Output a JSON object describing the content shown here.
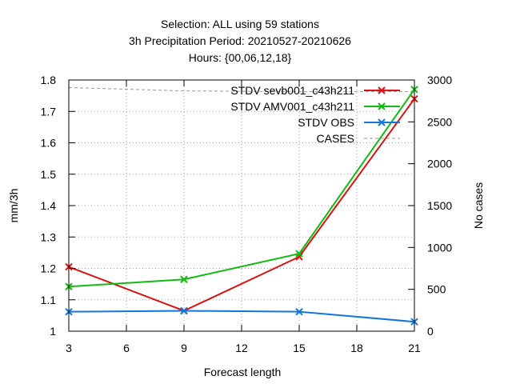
{
  "chart_data": {
    "type": "line",
    "title_lines": [
      "Selection: ALL using    59 stations",
      "3h Precipitation   Period: 20210527-20210626",
      "Hours: {00,06,12,18}"
    ],
    "xlabel": "Forecast length",
    "ylabel": "mm/3h",
    "y2label": "No cases",
    "x": [
      3,
      9,
      15,
      21
    ],
    "xlim": [
      3,
      21
    ],
    "xticks": [
      3,
      6,
      9,
      12,
      15,
      18,
      21
    ],
    "ylim": [
      1.0,
      1.8
    ],
    "yticks": [
      1,
      1.1,
      1.2,
      1.3,
      1.4,
      1.5,
      1.6,
      1.7,
      1.8
    ],
    "y2lim": [
      0,
      3000
    ],
    "y2ticks": [
      0,
      500,
      1000,
      1500,
      2000,
      2500,
      3000
    ],
    "grid": true,
    "legend_position": "top-right",
    "series": [
      {
        "name": "STDV sevb001_c43h211",
        "axis": "y",
        "color": "#dd1111",
        "marker": "x",
        "dash": false,
        "x": [
          3,
          9,
          15,
          21
        ],
        "values": [
          1.205,
          1.065,
          1.237,
          1.74
        ]
      },
      {
        "name": "STDV AMV001_c43h211",
        "axis": "y",
        "color": "#11bb11",
        "marker": "x",
        "dash": false,
        "x": [
          3,
          9,
          15,
          21
        ],
        "values": [
          1.142,
          1.165,
          1.247,
          1.77
        ]
      },
      {
        "name": "STDV OBS",
        "axis": "y",
        "color": "#1177dd",
        "marker": "x",
        "dash": false,
        "x": [
          3,
          9,
          15,
          21
        ],
        "values": [
          1.062,
          1.065,
          1.062,
          1.03
        ]
      },
      {
        "name": "CASES",
        "axis": "y2",
        "color": "#999999",
        "marker": "none",
        "dash": true,
        "x": [
          3,
          9,
          15,
          21
        ],
        "values": [
          2910,
          2870,
          2860,
          2860
        ]
      }
    ]
  }
}
